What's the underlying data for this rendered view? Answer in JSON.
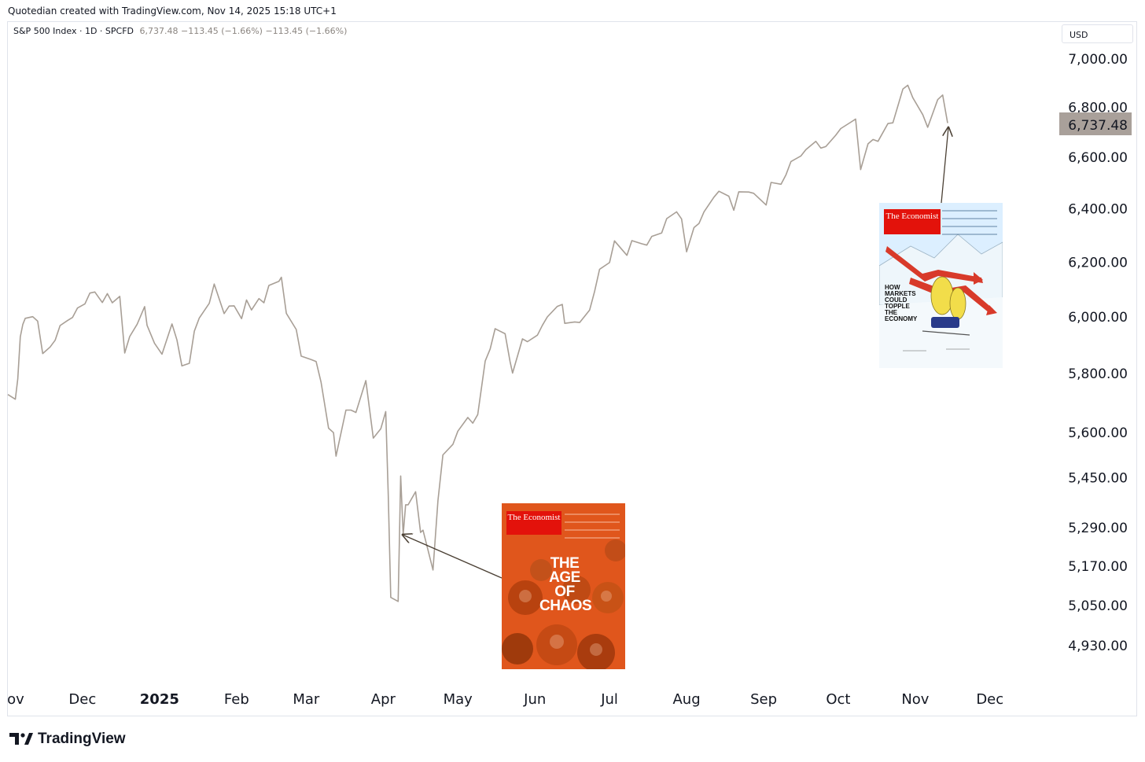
{
  "header": {
    "credit": "Quotedian created with TradingView.com, Nov 14, 2025 15:18 UTC+1"
  },
  "legend": {
    "symbol": "S&P 500 Index · 1D · SPCFD",
    "values": "6,737.48  −113.45 (−1.66%)  −113.45 (−1.66%)"
  },
  "currency": "USD",
  "last_price_label": "6,737.48",
  "footer": {
    "brand": "TradingView"
  },
  "colors": {
    "line": "#a89f96",
    "price_badge": "#a9a09a",
    "arrow": "#4a3f33"
  },
  "covers": [
    {
      "brand": "The Economist",
      "headline": "THE AGE OF CHAOS",
      "background": "#e0561c"
    },
    {
      "brand": "The Economist",
      "headline": "HOW MARKETS COULD TOPPLE THE ECONOMY",
      "background": "#d5ecf7"
    }
  ],
  "chart_data": {
    "type": "line",
    "title": "S&P 500 Index",
    "xlabel": "",
    "ylabel": "",
    "y_scale": "log",
    "ylim": [
      4880,
      7100
    ],
    "x_tick_labels": [
      "ov",
      "Dec",
      "2025",
      "Feb",
      "Mar",
      "Apr",
      "May",
      "Jun",
      "Jul",
      "Aug",
      "Sep",
      "Oct",
      "Nov",
      "Dec"
    ],
    "y_tick_labels": [
      "7,000.00",
      "6,800.00",
      "6,600.00",
      "6,400.00",
      "6,200.00",
      "6,000.00",
      "5,800.00",
      "5,600.00",
      "5,450.00",
      "5,290.00",
      "5,170.00",
      "5,050.00",
      "4,930.00"
    ],
    "series": [
      {
        "x": [
          "2024-11-01",
          "2024-11-04",
          "2024-11-05",
          "2024-11-06",
          "2024-11-07",
          "2024-11-08",
          "2024-11-11",
          "2024-11-13",
          "2024-11-15",
          "2024-11-18",
          "2024-11-20",
          "2024-11-22",
          "2024-11-25",
          "2024-11-27",
          "2024-11-29",
          "2024-12-02",
          "2024-12-04",
          "2024-12-06",
          "2024-12-09",
          "2024-12-11",
          "2024-12-13",
          "2024-12-16",
          "2024-12-18",
          "2024-12-20",
          "2024-12-23",
          "2024-12-26",
          "2024-12-27",
          "2024-12-30",
          "2025-01-02",
          "2025-01-06",
          "2025-01-08",
          "2025-01-10",
          "2025-01-13",
          "2025-01-15",
          "2025-01-17",
          "2025-01-21",
          "2025-01-23",
          "2025-01-27",
          "2025-01-29",
          "2025-01-31",
          "2025-02-03",
          "2025-02-05",
          "2025-02-07",
          "2025-02-10",
          "2025-02-12",
          "2025-02-14",
          "2025-02-18",
          "2025-02-19",
          "2025-02-21",
          "2025-02-25",
          "2025-02-27",
          "2025-03-03",
          "2025-03-05",
          "2025-03-07",
          "2025-03-10",
          "2025-03-12",
          "2025-03-13",
          "2025-03-17",
          "2025-03-19",
          "2025-03-21",
          "2025-03-25",
          "2025-03-28",
          "2025-03-31",
          "2025-04-02",
          "2025-04-03",
          "2025-04-04",
          "2025-04-07",
          "2025-04-08",
          "2025-04-09",
          "2025-04-10",
          "2025-04-11",
          "2025-04-14",
          "2025-04-16",
          "2025-04-17",
          "2025-04-21",
          "2025-04-23",
          "2025-04-25",
          "2025-04-29",
          "2025-05-01",
          "2025-05-05",
          "2025-05-07",
          "2025-05-09",
          "2025-05-12",
          "2025-05-14",
          "2025-05-16",
          "2025-05-20",
          "2025-05-22",
          "2025-05-23",
          "2025-05-27",
          "2025-05-29",
          "2025-06-02",
          "2025-06-04",
          "2025-06-06",
          "2025-06-10",
          "2025-06-12",
          "2025-06-13",
          "2025-06-17",
          "2025-06-19",
          "2025-06-23",
          "2025-06-25",
          "2025-06-27",
          "2025-07-01",
          "2025-07-03",
          "2025-07-08",
          "2025-07-10",
          "2025-07-14",
          "2025-07-16",
          "2025-07-18",
          "2025-07-22",
          "2025-07-24",
          "2025-07-28",
          "2025-07-30",
          "2025-08-01",
          "2025-08-04",
          "2025-08-06",
          "2025-08-08",
          "2025-08-12",
          "2025-08-14",
          "2025-08-18",
          "2025-08-20",
          "2025-08-22",
          "2025-08-26",
          "2025-08-28",
          "2025-09-02",
          "2025-09-04",
          "2025-09-08",
          "2025-09-10",
          "2025-09-12",
          "2025-09-16",
          "2025-09-18",
          "2025-09-22",
          "2025-09-24",
          "2025-09-26",
          "2025-09-30",
          "2025-10-02",
          "2025-10-06",
          "2025-10-08",
          "2025-10-10",
          "2025-10-13",
          "2025-10-15",
          "2025-10-17",
          "2025-10-21",
          "2025-10-23",
          "2025-10-27",
          "2025-10-29",
          "2025-10-31",
          "2025-11-04",
          "2025-11-06",
          "2025-11-10",
          "2025-11-12",
          "2025-11-14"
        ],
        "values": [
          5728,
          5712,
          5782,
          5929,
          5973,
          5995,
          6001,
          5985,
          5870,
          5893,
          5917,
          5969,
          5987,
          5998,
          6032,
          6047,
          6086,
          6090,
          6052,
          6084,
          6051,
          6074,
          5872,
          5930,
          5974,
          6037,
          5970,
          5906,
          5868,
          5975,
          5918,
          5827,
          5836,
          5949,
          5996,
          6049,
          6119,
          6012,
          6039,
          6040,
          5994,
          6061,
          6025,
          6066,
          6051,
          6114,
          6129,
          6144,
          6013,
          5955,
          5861,
          5849,
          5842,
          5770,
          5614,
          5599,
          5521,
          5675,
          5675,
          5667,
          5776,
          5581,
          5612,
          5670,
          5396,
          5074,
          5062,
          5456,
          5268,
          5363,
          5363,
          5405,
          5275,
          5282,
          5158,
          5376,
          5525,
          5560,
          5604,
          5650,
          5631,
          5660,
          5844,
          5886,
          5958,
          5940,
          5842,
          5802,
          5922,
          5912,
          5935,
          5970,
          6000,
          6038,
          6045,
          5977,
          5982,
          5980,
          6025,
          6092,
          6173,
          6198,
          6279,
          6225,
          6280,
          6268,
          6263,
          6296,
          6309,
          6363,
          6389,
          6362,
          6238,
          6329,
          6345,
          6389,
          6445,
          6468,
          6449,
          6395,
          6466,
          6465,
          6460,
          6415,
          6502,
          6495,
          6532,
          6584,
          6606,
          6631,
          6664,
          6637,
          6643,
          6688,
          6715,
          6740,
          6753,
          6552,
          6654,
          6671,
          6664,
          6735,
          6738,
          6875,
          6891,
          6840,
          6771,
          6720,
          6832,
          6851,
          6737
        ]
      }
    ]
  }
}
